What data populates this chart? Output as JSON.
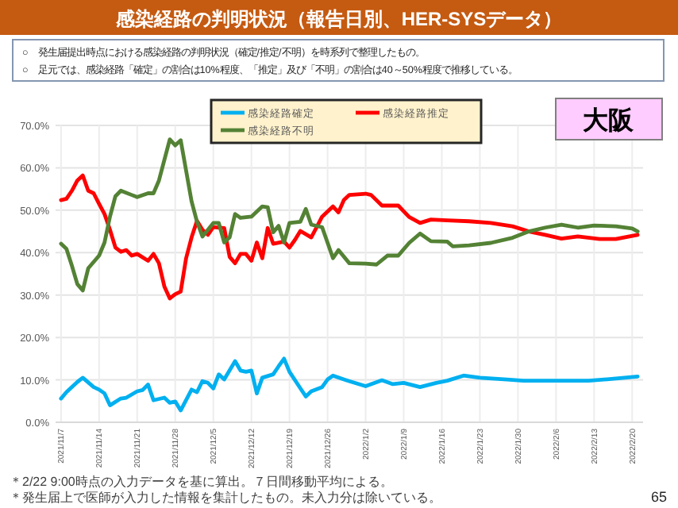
{
  "chart_data": {
    "type": "line",
    "title": "感染経路の判明状況（報告日別、HER-SYSデータ）",
    "annotations": [
      "○　発生届提出時点における感染経路の判明状況（確定/推定/不明）を時系列で整理したもの。",
      "○　足元では、感染経路「確定」の割合は10%程度、「推定」及び「不明」の割合は40～50%程度で推移している。",
      "大阪",
      "＊2/22 9:00時点の入力データを基に算出。７日間移動平均による。",
      "＊発生届上で医師が入力した情報を集計したもの。未入力分は除いている。",
      "65"
    ],
    "series": [
      {
        "name": "感染経路確定",
        "color": "#00b0f0",
        "x": [
          "2021-11-07",
          "2021-11-08",
          "2021-11-10",
          "2021-11-11",
          "2021-11-13",
          "2021-11-14",
          "2021-11-15",
          "2021-11-16",
          "2021-11-18",
          "2021-11-19",
          "2021-11-21",
          "2021-11-22",
          "2021-11-23",
          "2021-11-24",
          "2021-11-26",
          "2021-11-27",
          "2021-11-28",
          "2021-11-29",
          "2021-12-01",
          "2021-12-02",
          "2021-12-03",
          "2021-12-04",
          "2021-12-05",
          "2021-12-06",
          "2021-12-07",
          "2021-12-09",
          "2021-12-10",
          "2021-12-11",
          "2021-12-12",
          "2021-12-13",
          "2021-12-14",
          "2021-12-16",
          "2021-12-17",
          "2021-12-18",
          "2021-12-19",
          "2021-12-21",
          "2021-12-22",
          "2021-12-23",
          "2021-12-25",
          "2021-12-26",
          "2021-12-27",
          "2021-12-29",
          "2021-12-30",
          "2022-01-02",
          "2022-01-05",
          "2022-01-07",
          "2022-01-09",
          "2022-01-12",
          "2022-01-15",
          "2022-01-17",
          "2022-01-20",
          "2022-01-23",
          "2022-01-28",
          "2022-01-31",
          "2022-02-06",
          "2022-02-12",
          "2022-02-17",
          "2022-02-21"
        ],
        "values": [
          5.6,
          7.1,
          9.5,
          10.5,
          8.3,
          7.7,
          6.8,
          4.0,
          5.6,
          5.8,
          7.3,
          7.6,
          8.9,
          5.2,
          5.8,
          4.6,
          4.9,
          2.8,
          7.7,
          7.1,
          9.7,
          9.3,
          8.0,
          11.3,
          10.1,
          14.4,
          12.2,
          11.9,
          12.2,
          6.8,
          10.5,
          11.3,
          13.2,
          15.0,
          11.9,
          8.0,
          6.1,
          7.3,
          8.3,
          10.1,
          11.0,
          10.1,
          9.7,
          8.5,
          9.9,
          9.0,
          9.3,
          8.3,
          9.3,
          9.8,
          11.0,
          10.5,
          10.1,
          9.8,
          9.8,
          9.8,
          10.3,
          10.8
        ]
      },
      {
        "name": "感染経路推定",
        "color": "#ff0000",
        "x": [
          "2021-11-07",
          "2021-11-08",
          "2021-11-09",
          "2021-11-10",
          "2021-11-11",
          "2021-11-12",
          "2021-11-13",
          "2021-11-14",
          "2021-11-15",
          "2021-11-16",
          "2021-11-17",
          "2021-11-18",
          "2021-11-19",
          "2021-11-20",
          "2021-11-21",
          "2021-11-23",
          "2021-11-24",
          "2021-11-25",
          "2021-11-26",
          "2021-11-27",
          "2021-11-28",
          "2021-11-29",
          "2021-11-30",
          "2021-12-01",
          "2021-12-02",
          "2021-12-03",
          "2021-12-04",
          "2021-12-05",
          "2021-12-07",
          "2021-12-08",
          "2021-12-09",
          "2021-12-10",
          "2021-12-11",
          "2021-12-12",
          "2021-12-13",
          "2021-12-14",
          "2021-12-15",
          "2021-12-16",
          "2021-12-18",
          "2021-12-19",
          "2021-12-20",
          "2021-12-21",
          "2021-12-23",
          "2021-12-24",
          "2021-12-25",
          "2021-12-27",
          "2021-12-28",
          "2021-12-29",
          "2021-12-30",
          "2022-01-02",
          "2022-01-03",
          "2022-01-05",
          "2022-01-08",
          "2022-01-10",
          "2022-01-12",
          "2022-01-14",
          "2022-01-17",
          "2022-01-21",
          "2022-01-25",
          "2022-01-29",
          "2022-02-01",
          "2022-02-04",
          "2022-02-07",
          "2022-02-10",
          "2022-02-14",
          "2022-02-17",
          "2022-02-21"
        ],
        "values": [
          52.4,
          52.7,
          54.6,
          57.0,
          58.2,
          54.6,
          54.0,
          51.5,
          49.1,
          45.4,
          41.2,
          40.2,
          40.6,
          39.3,
          39.7,
          38.1,
          39.7,
          37.5,
          32.0,
          29.2,
          30.2,
          30.8,
          38.7,
          43.6,
          47.5,
          45.4,
          44.2,
          46.0,
          45.8,
          39.0,
          37.5,
          39.7,
          39.7,
          38.1,
          42.4,
          38.7,
          45.8,
          42.1,
          42.6,
          41.2,
          43.0,
          45.1,
          43.6,
          46.0,
          48.5,
          50.9,
          49.5,
          52.4,
          53.6,
          53.9,
          53.6,
          51.1,
          51.1,
          48.4,
          47.0,
          47.8,
          47.6,
          47.4,
          47.0,
          46.2,
          45.0,
          44.2,
          43.3,
          43.8,
          43.2,
          43.2,
          44.2
        ]
      },
      {
        "name": "感染経路不明",
        "color": "#548235",
        "x": [
          "2021-11-07",
          "2021-11-08",
          "2021-11-09",
          "2021-11-10",
          "2021-11-11",
          "2021-11-12",
          "2021-11-14",
          "2021-11-15",
          "2021-11-16",
          "2021-11-17",
          "2021-11-18",
          "2021-11-20",
          "2021-11-21",
          "2021-11-23",
          "2021-11-24",
          "2021-11-25",
          "2021-11-27",
          "2021-11-28",
          "2021-11-29",
          "2021-12-01",
          "2021-12-02",
          "2021-12-03",
          "2021-12-05",
          "2021-12-06",
          "2021-12-07",
          "2021-12-08",
          "2021-12-09",
          "2021-12-10",
          "2021-12-12",
          "2021-12-14",
          "2021-12-15",
          "2021-12-16",
          "2021-12-17",
          "2021-12-18",
          "2021-12-19",
          "2021-12-21",
          "2021-12-22",
          "2021-12-23",
          "2021-12-25",
          "2021-12-27",
          "2021-12-28",
          "2021-12-30",
          "2022-01-02",
          "2022-01-04",
          "2022-01-06",
          "2022-01-08",
          "2022-01-10",
          "2022-01-12",
          "2022-01-14",
          "2022-01-17",
          "2022-01-18",
          "2022-01-21",
          "2022-01-25",
          "2022-01-29",
          "2022-02-01",
          "2022-02-04",
          "2022-02-07",
          "2022-02-10",
          "2022-02-13",
          "2022-02-17",
          "2022-02-20",
          "2022-02-21"
        ],
        "values": [
          42.1,
          40.9,
          36.9,
          32.6,
          31.1,
          36.3,
          39.3,
          42.4,
          48.5,
          53.3,
          54.6,
          53.6,
          53.1,
          54.0,
          54.0,
          57.0,
          66.7,
          65.3,
          66.5,
          52.1,
          47.3,
          43.8,
          47.0,
          47.0,
          42.4,
          43.6,
          49.1,
          48.2,
          48.5,
          50.9,
          50.7,
          44.8,
          46.3,
          42.4,
          47.0,
          47.3,
          50.3,
          46.6,
          46.0,
          38.7,
          40.6,
          37.5,
          37.4,
          37.2,
          39.3,
          39.3,
          42.3,
          44.5,
          42.7,
          42.6,
          41.5,
          41.7,
          42.3,
          43.5,
          45.0,
          45.9,
          46.6,
          45.9,
          46.4,
          46.2,
          45.7,
          45.0
        ]
      }
    ],
    "xlim": [
      "2021-11-06",
      "2022-02-22"
    ],
    "xticks": [
      {
        "value": "2021-11-07",
        "label": "2021/11/7"
      },
      {
        "value": "2021-11-14",
        "label": "2021/11/14"
      },
      {
        "value": "2021-11-21",
        "label": "2021/11/21"
      },
      {
        "value": "2021-11-28",
        "label": "2021/11/28"
      },
      {
        "value": "2021-12-05",
        "label": "2021/12/5"
      },
      {
        "value": "2021-12-12",
        "label": "2021/12/12"
      },
      {
        "value": "2021-12-19",
        "label": "2021/12/19"
      },
      {
        "value": "2021-12-26",
        "label": "2021/12/26"
      },
      {
        "value": "2022-01-02",
        "label": "2022/1/2"
      },
      {
        "value": "2022-01-09",
        "label": "2022/1/9"
      },
      {
        "value": "2022-01-16",
        "label": "2022/1/16"
      },
      {
        "value": "2022-01-23",
        "label": "2022/1/23"
      },
      {
        "value": "2022-01-30",
        "label": "2022/1/30"
      },
      {
        "value": "2022-02-06",
        "label": "2022/2/6"
      },
      {
        "value": "2022-02-13",
        "label": "2022/2/13"
      },
      {
        "value": "2022-02-20",
        "label": "2022/2/20"
      }
    ],
    "ylim": [
      0,
      70
    ],
    "yticks": [
      {
        "value": 0,
        "label": "0.0%"
      },
      {
        "value": 10,
        "label": "10.0%"
      },
      {
        "value": 20,
        "label": "20.0%"
      },
      {
        "value": 30,
        "label": "30.0%"
      },
      {
        "value": 40,
        "label": "40.0%"
      },
      {
        "value": 50,
        "label": "50.0%"
      },
      {
        "value": 60,
        "label": "60.0%"
      },
      {
        "value": 70,
        "label": "70.0%"
      }
    ],
    "grid": true,
    "legend": "top",
    "line_style": "solid",
    "marker": "none"
  }
}
